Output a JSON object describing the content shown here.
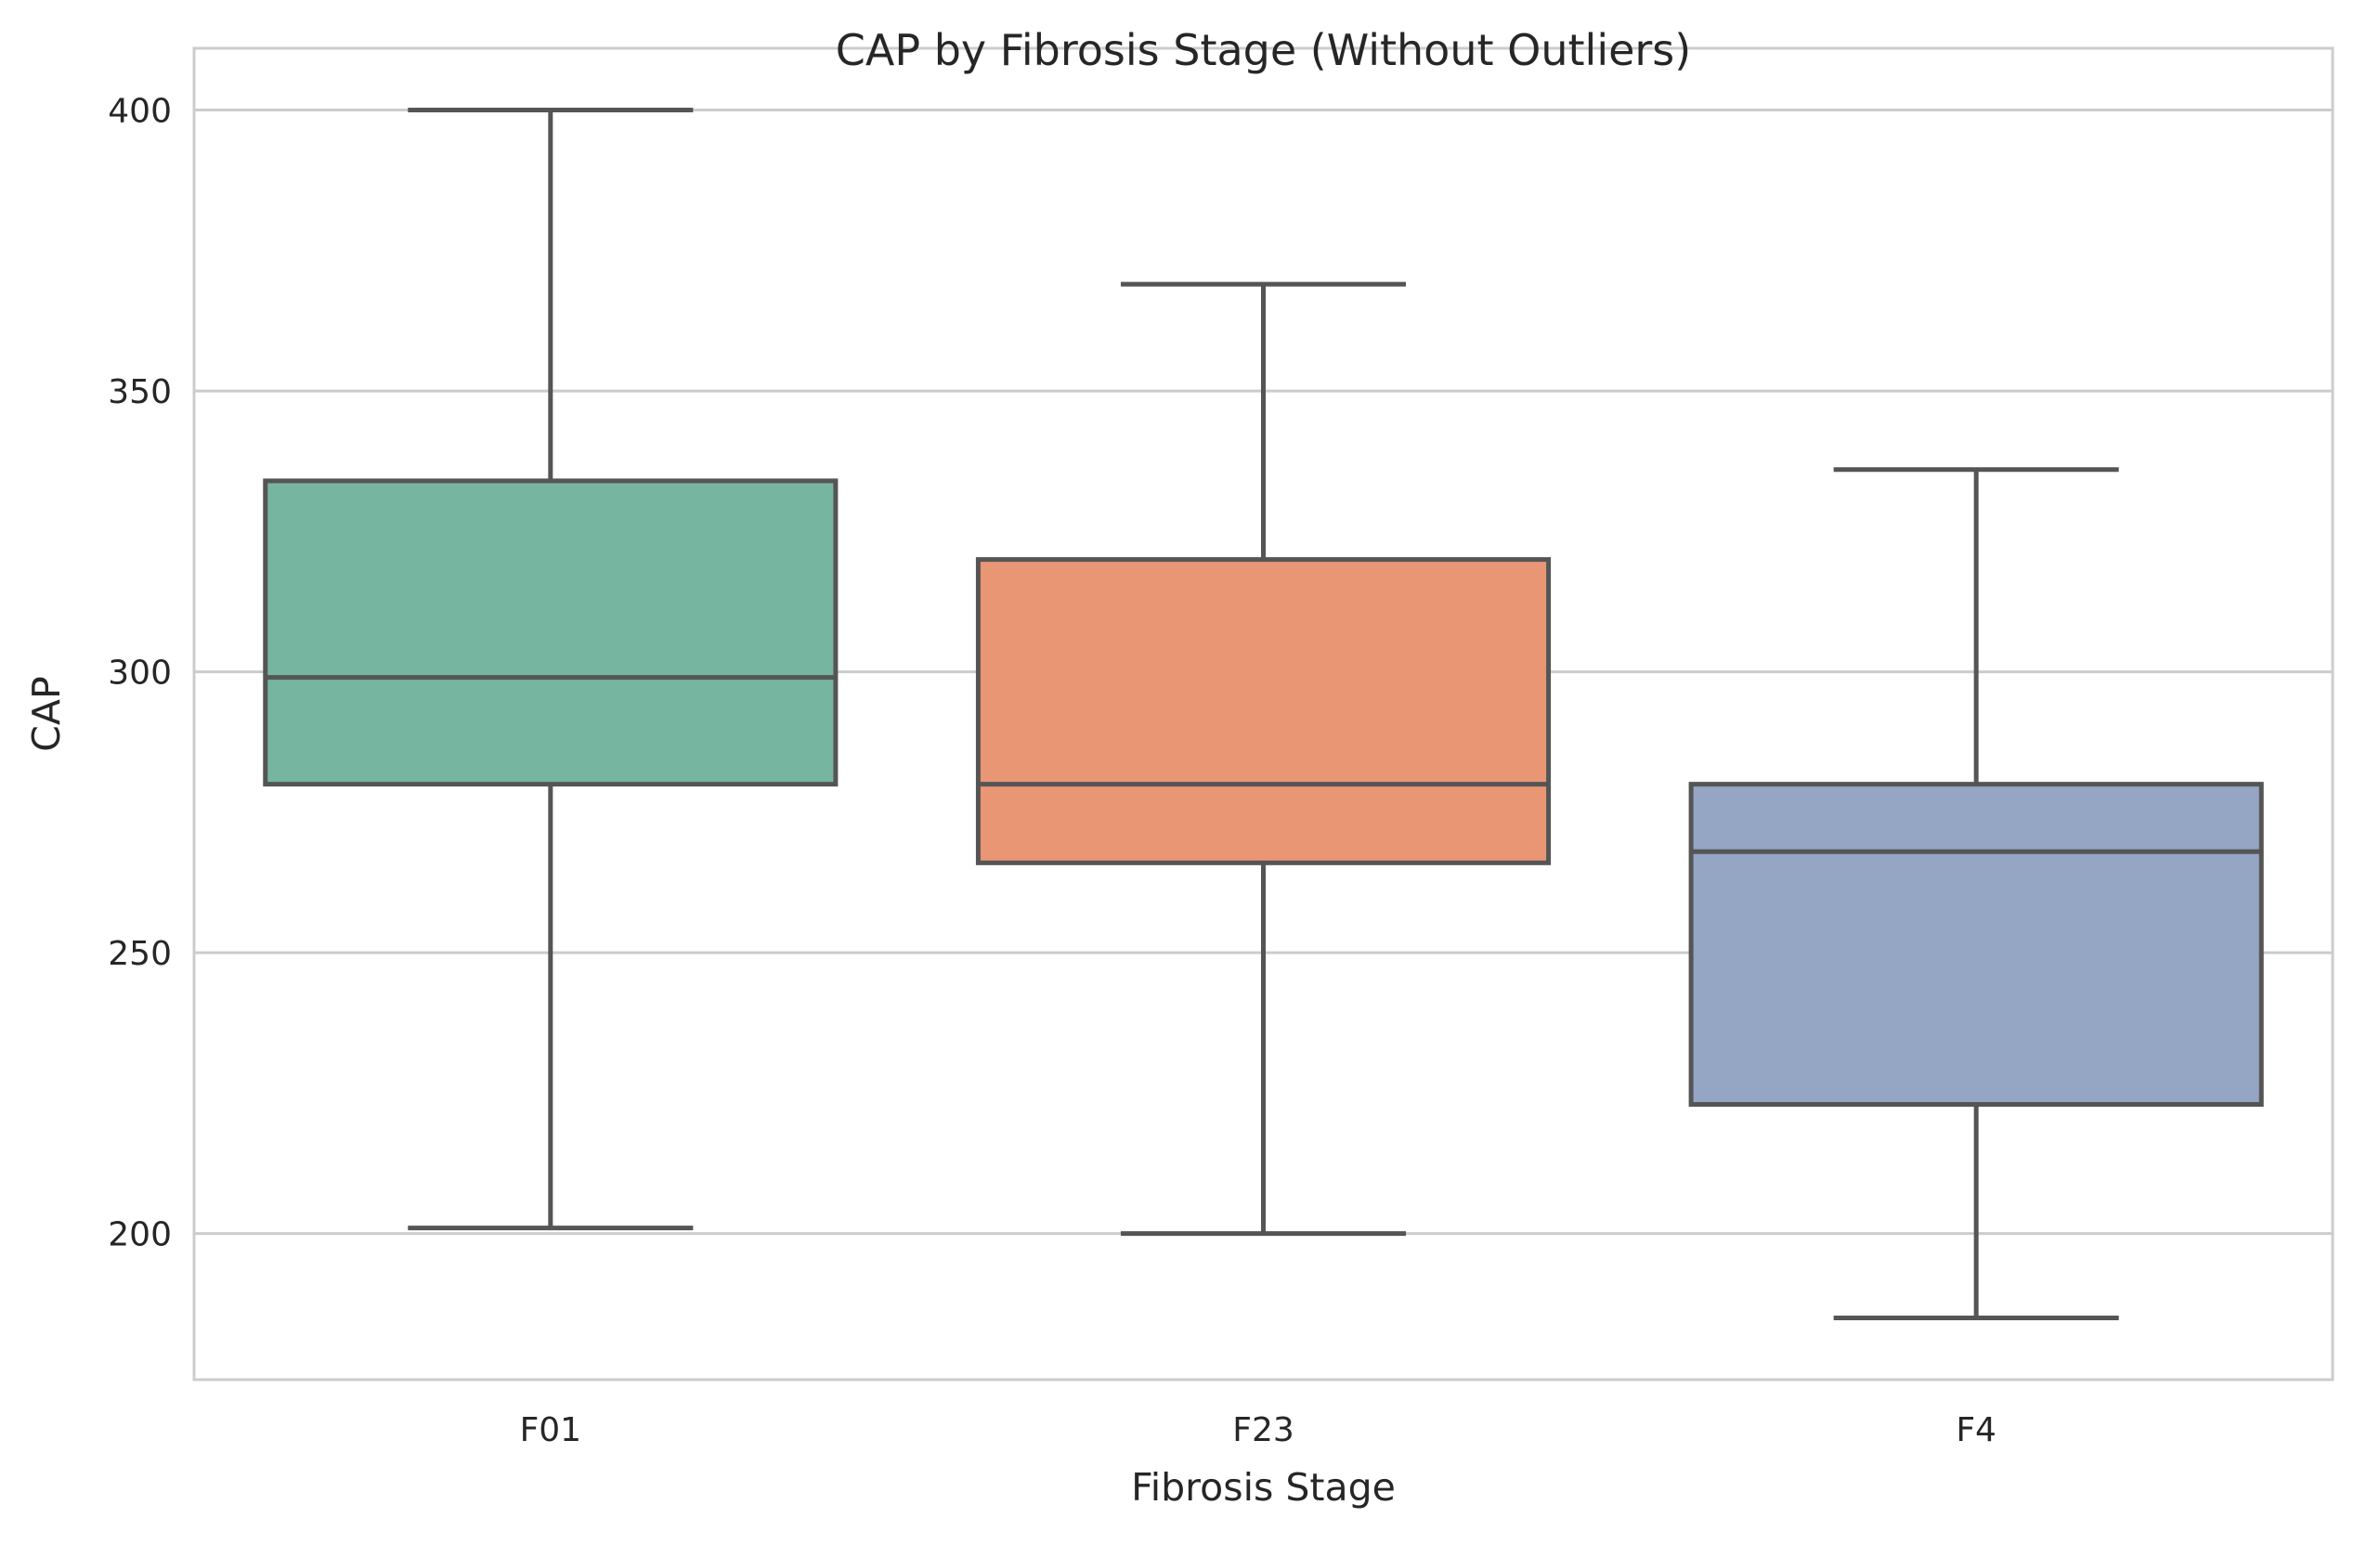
{
  "chart_data": {
    "type": "box",
    "title": "CAP by Fibrosis Stage (Without Outliers)",
    "xlabel": "Fibrosis Stage",
    "ylabel": "CAP",
    "ylim": [
      174,
      411
    ],
    "yticks": [
      200,
      250,
      300,
      350,
      400
    ],
    "grid": "horizontal",
    "categories": [
      "F01",
      "F23",
      "F4"
    ],
    "boxes": [
      {
        "category": "F01",
        "whisker_low": 201,
        "q1": 280,
        "median": 299,
        "q3": 334,
        "whisker_high": 400,
        "color": "#76b5a0"
      },
      {
        "category": "F23",
        "whisker_low": 200,
        "q1": 266,
        "median": 280,
        "q3": 320,
        "whisker_high": 369,
        "color": "#e99675"
      },
      {
        "category": "F4",
        "whisker_low": 185,
        "q1": 223,
        "median": 268,
        "q3": 280,
        "whisker_high": 336,
        "color": "#95a5c4"
      }
    ],
    "colors": {
      "line": "#555555",
      "grid": "#cccccc",
      "frame": "#cccccc"
    }
  }
}
